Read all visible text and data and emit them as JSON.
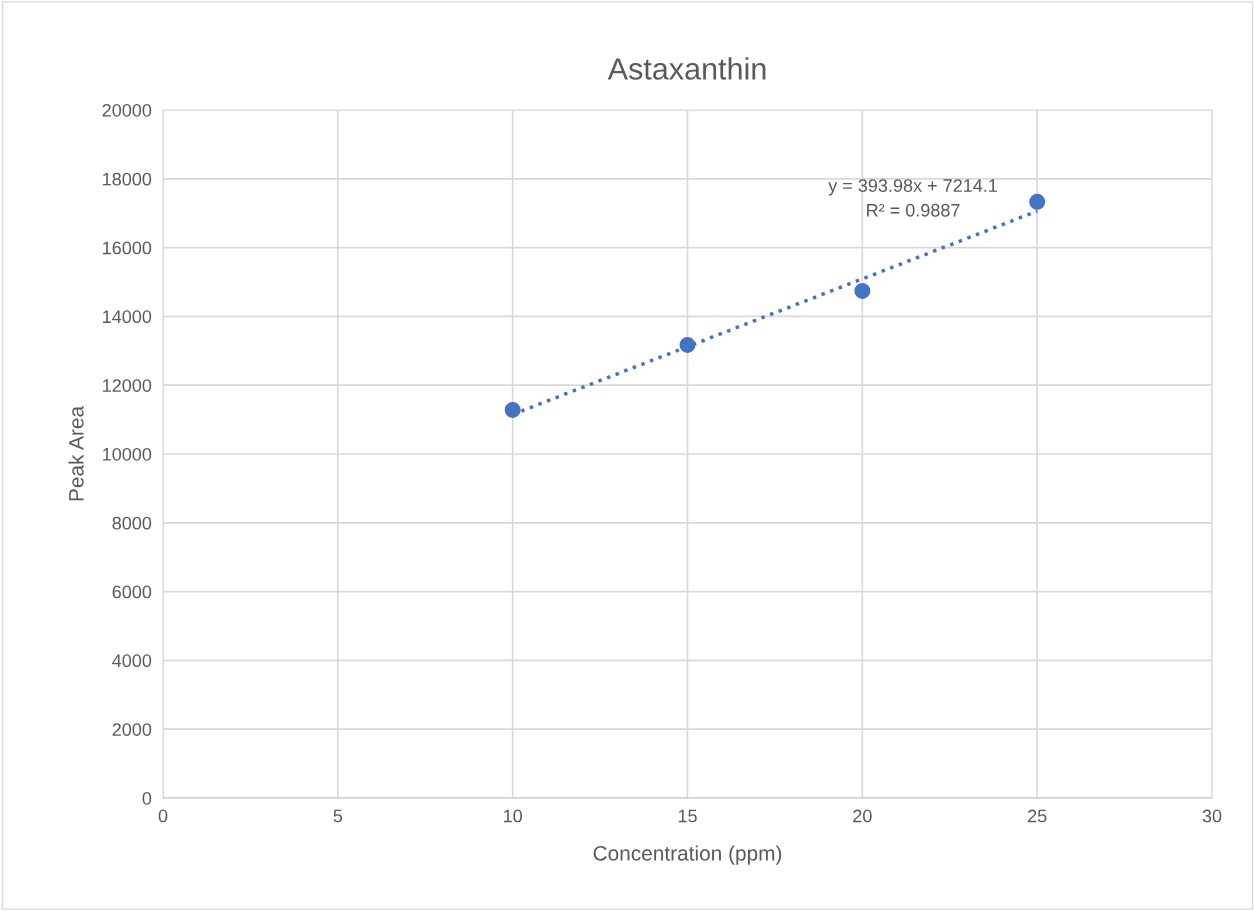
{
  "chart_data": {
    "type": "scatter",
    "title": "Astaxanthin",
    "xlabel": "Concentration (ppm)",
    "ylabel": "Peak Area",
    "series": [
      {
        "color": "#4472c4",
        "x": [
          10,
          15,
          20,
          25
        ],
        "values": [
          11280,
          13170,
          14740,
          17330
        ],
        "marker": "circle"
      },
      {
        "type": "line",
        "color": "#4472c4",
        "x": [
          10,
          25
        ],
        "values": [
          11150,
          17060
        ],
        "line_style": "dotted",
        "marker": "none"
      }
    ],
    "annotations": [
      "y = 393.98x + 7214.1\nR² = 0.9887"
    ],
    "xlim": [
      0,
      30
    ],
    "xticks": [
      0,
      5,
      10,
      15,
      20,
      25,
      30
    ],
    "ylim": [
      0,
      20000
    ],
    "yticks": [
      0,
      2000,
      4000,
      6000,
      8000,
      10000,
      12000,
      14000,
      16000,
      18000,
      20000
    ],
    "grid": true,
    "legend": false
  }
}
